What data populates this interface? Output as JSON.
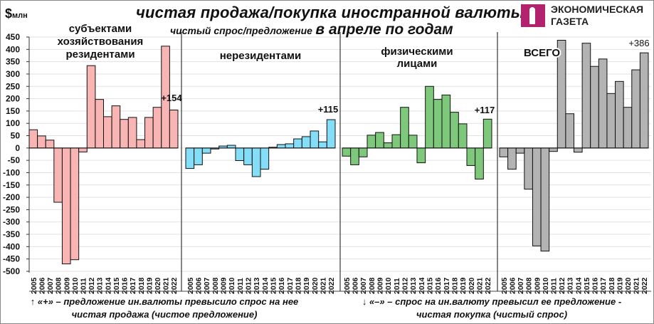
{
  "header": {
    "unit_symbol": "$",
    "unit_label": "млн",
    "title": "чистая продажа/покупка иностранной валюты",
    "subtitle_small": "чистый спрос/предложение",
    "subtitle_large": "в апреле по годам"
  },
  "logo": {
    "line1": "ЭКОНОМИЧЕСКАЯ",
    "line2": "ГАЗЕТА",
    "color": "#b2226f"
  },
  "notes": {
    "plus_line1": "↑ «+» – предложение ин.валюты превысило спрос на нее",
    "plus_line2": "чистая продажа (чистое предложение)",
    "minus_line1": "↓ «–» – спрос на ин.валюту превысил ее предложение -",
    "minus_line2": "чистая покупка (чистый спрос)"
  },
  "chart_data": {
    "type": "bar",
    "ylabel": "$млн",
    "ylim": [
      -500,
      450
    ],
    "yticks": [
      450,
      400,
      350,
      300,
      250,
      200,
      150,
      100,
      50,
      0,
      -50,
      -100,
      -150,
      -200,
      -250,
      -300,
      -350,
      -400,
      -450,
      -500
    ],
    "grid": true,
    "categories": [
      "2005",
      "2006",
      "2007",
      "2008",
      "2009",
      "2010",
      "2011",
      "2012",
      "2013",
      "2014",
      "2015",
      "2016",
      "2017",
      "2018",
      "2019",
      "2020",
      "2021",
      "2022"
    ],
    "series": [
      {
        "name": "субъектами хозяйствования резидентами",
        "title_lines": [
          "субъектами",
          "хозяйствования",
          "резидентами"
        ],
        "color": "#f9b4b4",
        "annotation": "+154",
        "values": [
          74,
          49,
          32,
          -220,
          -470,
          -453,
          -16,
          334,
          197,
          127,
          171,
          116,
          124,
          34,
          124,
          165,
          413,
          154
        ]
      },
      {
        "name": "нерезидентами",
        "title_lines": [
          "нерезидентами"
        ],
        "color": "#84def8",
        "annotation": "+115",
        "values": [
          -83,
          -68,
          -21,
          -4,
          8,
          11,
          -51,
          -68,
          -116,
          -86,
          3,
          14,
          17,
          37,
          46,
          69,
          25,
          115
        ]
      },
      {
        "name": "физическими лицами",
        "title_lines": [
          "физическими",
          "лицами"
        ],
        "color": "#7ec87c",
        "annotation": "+117",
        "values": [
          -33,
          -68,
          -36,
          52,
          63,
          21,
          54,
          165,
          52,
          -60,
          250,
          197,
          215,
          145,
          98,
          -71,
          -126,
          117
        ]
      },
      {
        "name": "ВСЕГО",
        "title_lines": [
          "ВСЕГО"
        ],
        "color": "#b3b3b3",
        "annotation": "+386",
        "values": [
          -36,
          -86,
          -21,
          -167,
          -397,
          -418,
          -14,
          437,
          139,
          -17,
          425,
          331,
          361,
          221,
          270,
          165,
          317,
          386
        ]
      }
    ]
  }
}
